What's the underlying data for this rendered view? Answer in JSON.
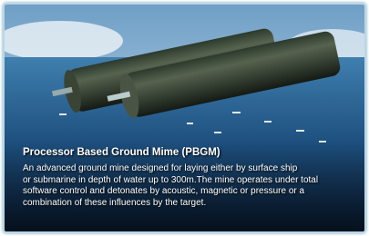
{
  "slide": {
    "title": "Processor Based Ground Mime (PBGM)",
    "description_lines": [
      "An advanced ground mine designed for laying either by surface ship",
      "or submarine in depth of water up to 300m.The mine operates under total",
      "software control and detonates by acoustic, magnetic or pressure or a",
      "combination of these influences by the target."
    ]
  }
}
